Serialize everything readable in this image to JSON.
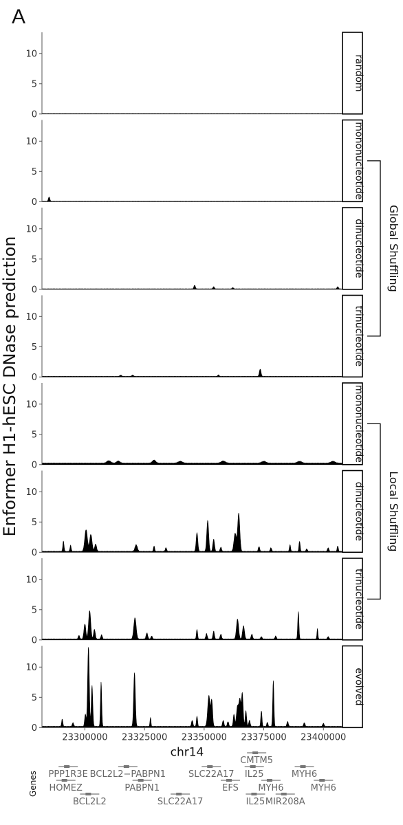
{
  "panel_letter": "A",
  "chart_data": {
    "type": "area",
    "ylabel": "Enformer H1-hESC DNase prediction",
    "xlabel": "chr14",
    "xlim": [
      23282000,
      23408000
    ],
    "ylim": [
      0,
      13.5
    ],
    "yticks": [
      0,
      5,
      10
    ],
    "xticks": [
      23300000,
      23325000,
      23350000,
      23375000,
      23400000
    ],
    "xtick_labels": [
      "23300000",
      "23325000",
      "23350000",
      "23375000",
      "23400000"
    ],
    "panels": [
      {
        "name": "random",
        "baseline": 0.05,
        "peaks": []
      },
      {
        "name": "mononucleotide",
        "baseline": 0.08,
        "peaks": [
          [
            23285000,
            0.7,
            300
          ]
        ]
      },
      {
        "name": "dinucleotide",
        "baseline": 0.08,
        "peaks": [
          [
            23346000,
            0.6,
            300
          ],
          [
            23354000,
            0.35,
            300
          ],
          [
            23362000,
            0.2,
            300
          ],
          [
            23406000,
            0.35,
            300
          ]
        ]
      },
      {
        "name": "trinucleotide",
        "baseline": 0.1,
        "peaks": [
          [
            23373500,
            1.2,
            350
          ],
          [
            23356000,
            0.25,
            300
          ],
          [
            23315000,
            0.2,
            400
          ],
          [
            23320000,
            0.2,
            400
          ]
        ]
      },
      {
        "name": "mononucleotide",
        "baseline": 0.25,
        "peaks": [
          [
            23310000,
            0.4,
            800
          ],
          [
            23314000,
            0.35,
            700
          ],
          [
            23329000,
            0.5,
            700
          ],
          [
            23340000,
            0.3,
            900
          ],
          [
            23358000,
            0.35,
            900
          ],
          [
            23375000,
            0.3,
            900
          ],
          [
            23390000,
            0.3,
            900
          ],
          [
            23404000,
            0.3,
            900
          ]
        ]
      },
      {
        "name": "dinucleotide",
        "baseline": 0.15,
        "peaks": [
          [
            23291000,
            1.7,
            250
          ],
          [
            23294000,
            1.0,
            250
          ],
          [
            23300500,
            3.6,
            550
          ],
          [
            23302500,
            2.8,
            500
          ],
          [
            23304500,
            1.2,
            400
          ],
          [
            23321500,
            1.1,
            500
          ],
          [
            23329000,
            0.9,
            250
          ],
          [
            23334000,
            0.6,
            300
          ],
          [
            23347000,
            3.1,
            350
          ],
          [
            23351500,
            5.1,
            400
          ],
          [
            23354000,
            2.0,
            350
          ],
          [
            23364500,
            6.3,
            450
          ],
          [
            23363000,
            3.0,
            500
          ],
          [
            23357000,
            0.7,
            300
          ],
          [
            23373000,
            0.8,
            300
          ],
          [
            23378000,
            0.6,
            300
          ],
          [
            23386000,
            1.1,
            250
          ],
          [
            23390000,
            1.7,
            250
          ],
          [
            23393000,
            0.4,
            300
          ],
          [
            23402000,
            0.6,
            300
          ],
          [
            23406000,
            0.9,
            250
          ]
        ]
      },
      {
        "name": "trinucleotide",
        "baseline": 0.15,
        "peaks": [
          [
            23297500,
            0.6,
            300
          ],
          [
            23300000,
            2.5,
            400
          ],
          [
            23302000,
            4.7,
            450
          ],
          [
            23304000,
            1.6,
            350
          ],
          [
            23307000,
            0.7,
            300
          ],
          [
            23321000,
            3.5,
            500
          ],
          [
            23326000,
            1.0,
            350
          ],
          [
            23328000,
            0.5,
            300
          ],
          [
            23347000,
            1.6,
            250
          ],
          [
            23351000,
            0.9,
            300
          ],
          [
            23354000,
            1.3,
            300
          ],
          [
            23357000,
            0.8,
            300
          ],
          [
            23364000,
            3.3,
            450
          ],
          [
            23366500,
            2.2,
            400
          ],
          [
            23370000,
            0.8,
            300
          ],
          [
            23374000,
            0.4,
            300
          ],
          [
            23380000,
            0.5,
            300
          ],
          [
            23389500,
            4.6,
            250
          ],
          [
            23397500,
            1.7,
            200
          ],
          [
            23402000,
            0.4,
            300
          ]
        ]
      },
      {
        "name": "evolved",
        "baseline": 0.2,
        "peaks": [
          [
            23290500,
            1.2,
            250
          ],
          [
            23295000,
            0.6,
            300
          ],
          [
            23301500,
            13.2,
            350
          ],
          [
            23303000,
            6.8,
            300
          ],
          [
            23300200,
            2.0,
            300
          ],
          [
            23306800,
            7.4,
            250
          ],
          [
            23320800,
            8.9,
            350
          ],
          [
            23327500,
            1.5,
            200
          ],
          [
            23345000,
            1.0,
            300
          ],
          [
            23347000,
            1.7,
            250
          ],
          [
            23352000,
            5.1,
            500
          ],
          [
            23353200,
            4.2,
            350
          ],
          [
            23358000,
            1.0,
            300
          ],
          [
            23360000,
            0.8,
            300
          ],
          [
            23362500,
            2.0,
            300
          ],
          [
            23364000,
            3.3,
            450
          ],
          [
            23365000,
            4.3,
            400
          ],
          [
            23366000,
            5.4,
            350
          ],
          [
            23367500,
            2.6,
            300
          ],
          [
            23369000,
            1.0,
            300
          ],
          [
            23374000,
            2.6,
            250
          ],
          [
            23376500,
            0.7,
            250
          ],
          [
            23379000,
            7.6,
            250
          ],
          [
            23385000,
            0.8,
            300
          ],
          [
            23392000,
            0.6,
            300
          ],
          [
            23400000,
            0.5,
            300
          ]
        ]
      }
    ],
    "groups": [
      {
        "label": "Global Shuffling",
        "from_panel": 1,
        "to_panel": 3
      },
      {
        "label": "Local Shuffling",
        "from_panel": 4,
        "to_panel": 6
      }
    ],
    "genes_label": "Genes",
    "gene_labels": [
      {
        "text": "CMTM5",
        "x": 23372000,
        "row": 0
      },
      {
        "text": "PPP1R3E",
        "x": 23293000,
        "row": 1
      },
      {
        "text": "BCL2L2−PABPN1",
        "x": 23318000,
        "row": 1
      },
      {
        "text": "SLC22A17",
        "x": 23353000,
        "row": 1
      },
      {
        "text": "IL25",
        "x": 23371000,
        "row": 1
      },
      {
        "text": "MYH6",
        "x": 23392000,
        "row": 1
      },
      {
        "text": "HOMEZ",
        "x": 23292000,
        "row": 2
      },
      {
        "text": "PABPN1",
        "x": 23324000,
        "row": 2
      },
      {
        "text": "EFS",
        "x": 23361000,
        "row": 2
      },
      {
        "text": "MYH6",
        "x": 23378000,
        "row": 2
      },
      {
        "text": "MYH6",
        "x": 23400000,
        "row": 2
      },
      {
        "text": "BCL2L2",
        "x": 23302000,
        "row": 3
      },
      {
        "text": "SLC22A17",
        "x": 23340000,
        "row": 3
      },
      {
        "text": "IL25",
        "x": 23371500,
        "row": 3
      },
      {
        "text": "MIR208A",
        "x": 23384000,
        "row": 3
      }
    ]
  }
}
